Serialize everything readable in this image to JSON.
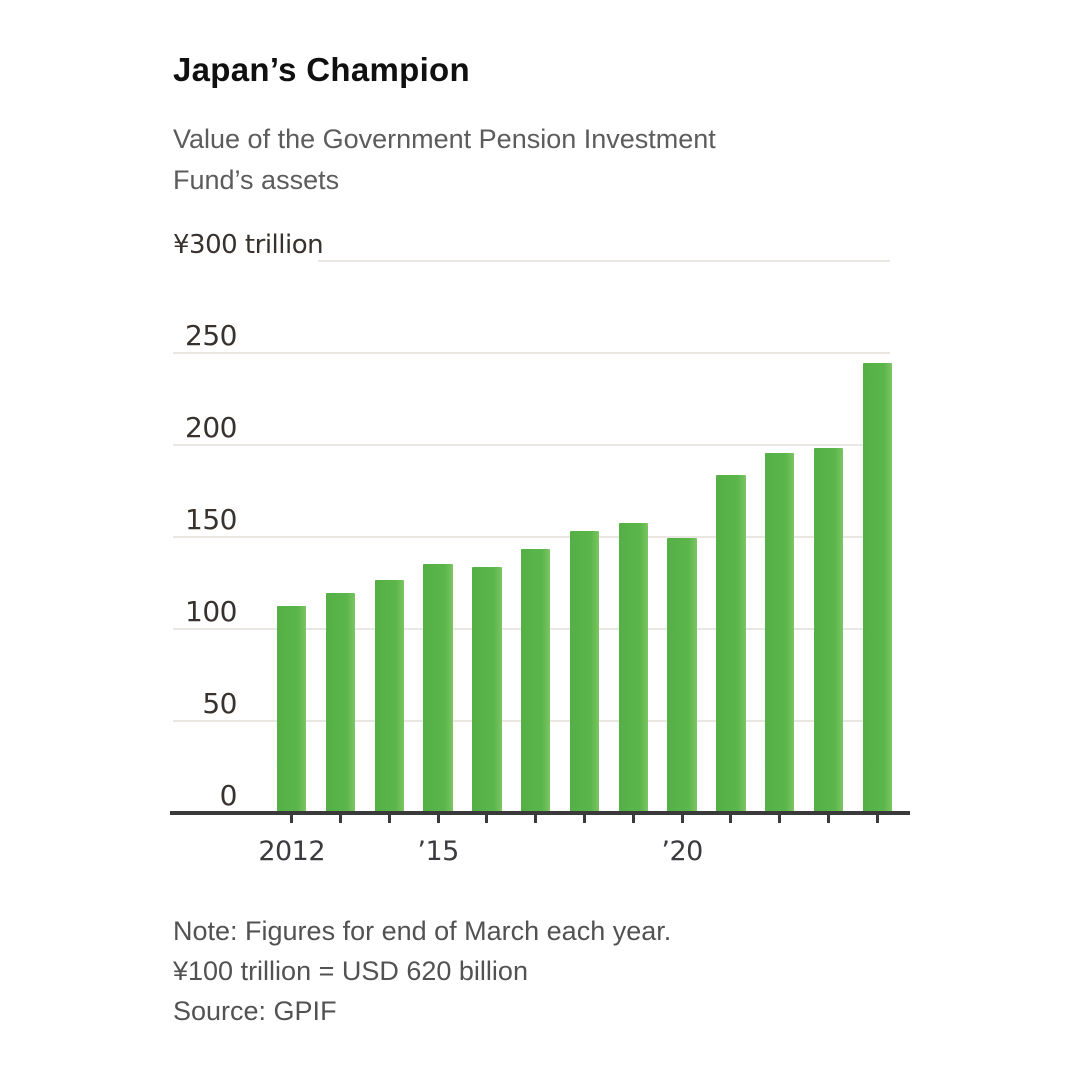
{
  "header": {
    "title": "Japan’s Champion",
    "subtitle_line1": "Value of the Government Pension Investment",
    "subtitle_line2": "Fund’s assets"
  },
  "chart_data": {
    "type": "bar",
    "title": "Japan’s Champion",
    "subtitle": "Value of the Government Pension Investment Fund’s assets",
    "unit": "yen trillion",
    "categories": [
      "2012",
      "2013",
      "2014",
      "2015",
      "2016",
      "2017",
      "2018",
      "2019",
      "2020",
      "2021",
      "2022",
      "2023",
      "2024"
    ],
    "values": [
      113,
      120,
      127,
      136,
      134,
      144,
      154,
      158,
      150,
      184,
      196,
      199,
      245
    ],
    "y_axis": {
      "ticks": [
        0,
        50,
        100,
        150,
        200,
        250
      ],
      "top_tick_value": 300,
      "top_tick_label": "¥300 trillion",
      "ylim": [
        0,
        300
      ],
      "grid": true
    },
    "x_axis": {
      "visible_labels": [
        {
          "index": 0,
          "label": "2012"
        },
        {
          "index": 3,
          "label": "’15"
        },
        {
          "index": 8,
          "label": "’20"
        }
      ]
    },
    "colors": {
      "bar": "#5bb64a",
      "bar_edge_highlight": "#7cc463",
      "bar_shade": "#54b046",
      "grid": "#eae7e3",
      "axis": "#3a3a3a"
    },
    "legend": null
  },
  "footer": {
    "note_line1": "Note: Figures for end of March each year.",
    "note_line2": "¥100 trillion = USD 620 billion",
    "source": "Source: GPIF"
  }
}
